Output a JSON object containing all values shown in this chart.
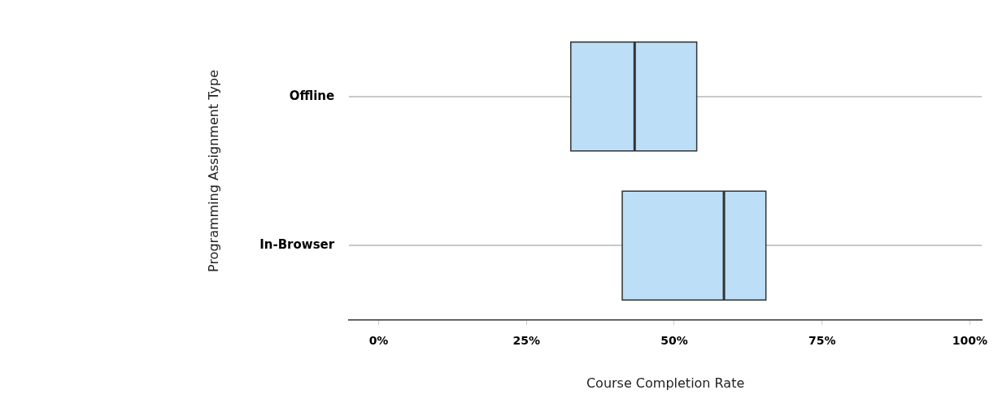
{
  "chart_data": {
    "type": "box",
    "orientation": "horizontal",
    "xlabel": "Course Completion Rate",
    "ylabel": "Programming Assignment Type",
    "categories": [
      "Offline",
      "In-Browser"
    ],
    "boxes": [
      {
        "low": 32.5,
        "q1": 32.5,
        "median": 43.3,
        "q3": 53.8,
        "high": 53.8
      },
      {
        "low": 41.2,
        "q1": 41.2,
        "median": 58.4,
        "q3": 65.5,
        "high": 65.5
      }
    ],
    "color": "#bcdff7",
    "xlim": [
      -5,
      102
    ],
    "xticks": [
      {
        "value": 0,
        "label": "0%"
      },
      {
        "value": 25,
        "label": "25%"
      },
      {
        "value": 50,
        "label": "50%"
      },
      {
        "value": 75,
        "label": "75%"
      },
      {
        "value": 100,
        "label": "100%"
      }
    ],
    "grid": "y"
  }
}
